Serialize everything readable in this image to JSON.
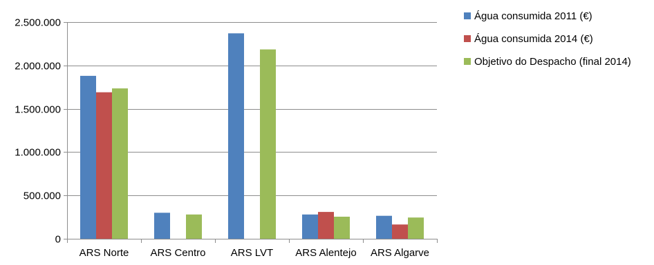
{
  "chart_data": {
    "type": "bar",
    "title": "",
    "xlabel": "",
    "ylabel": "",
    "ylim": [
      0,
      2500000
    ],
    "yticks": [
      0,
      500000,
      1000000,
      1500000,
      2000000,
      2500000
    ],
    "ytick_labels": [
      "0",
      "500.000",
      "1.000.000",
      "1.500.000",
      "2.000.000",
      "2.500.000"
    ],
    "grid": true,
    "legend_position": "right",
    "categories": [
      "ARS Norte",
      "ARS Centro",
      "ARS LVT",
      "ARS Alentejo",
      "ARS Algarve"
    ],
    "series": [
      {
        "name": "Água consumida 2011 (€)",
        "color": "#4F81BD",
        "values": [
          1880000,
          300000,
          2370000,
          280000,
          265000
        ]
      },
      {
        "name": "Água consumida 2014 (€)",
        "color": "#C0504D",
        "values": [
          1690000,
          null,
          null,
          310000,
          165000
        ]
      },
      {
        "name": "Objetivo do Despacho (final 2014)",
        "color": "#9BBB59",
        "values": [
          1735000,
          280000,
          2185000,
          255000,
          245000
        ]
      }
    ]
  }
}
